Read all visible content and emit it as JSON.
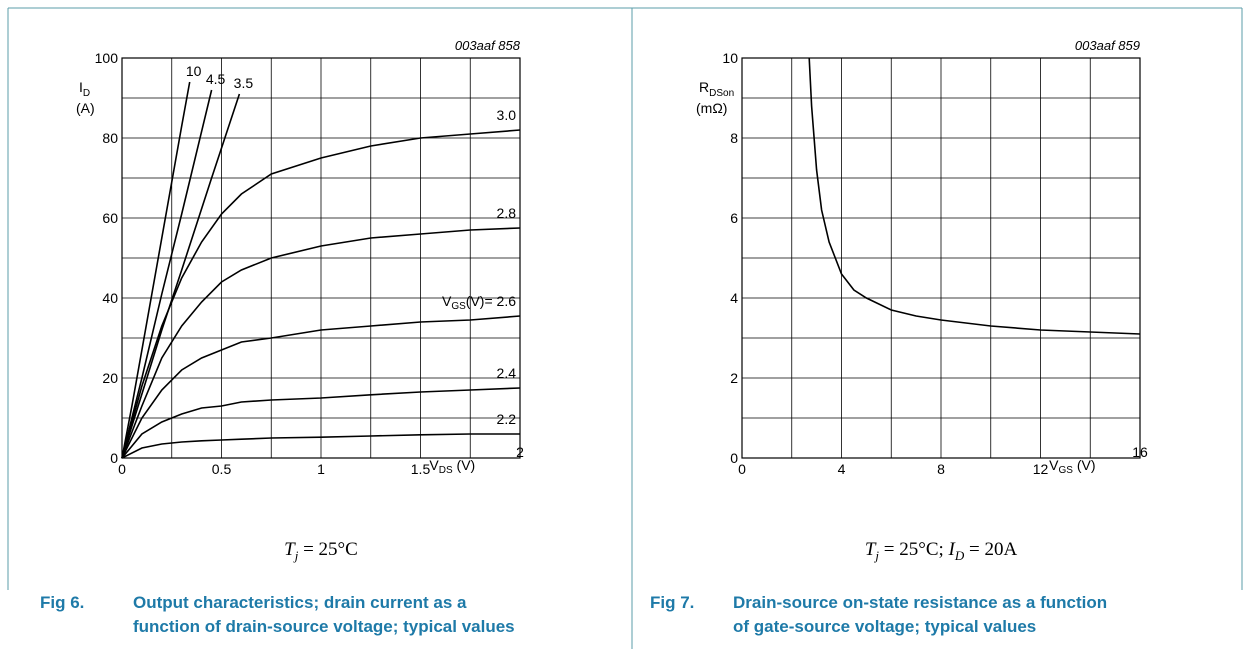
{
  "chart_data": [
    {
      "type": "line",
      "code": "003aaf 858",
      "ylabel": [
        "I",
        "D"
      ],
      "ylabel_unit": "(A)",
      "xlabel": [
        "V",
        "DS",
        " (V)"
      ],
      "legend_prefix": [
        "V",
        "GS",
        "(V)= "
      ],
      "xlim": [
        0,
        2
      ],
      "xticks": [
        0,
        0.5,
        1,
        1.5,
        2
      ],
      "ylim": [
        0,
        100
      ],
      "yticks": [
        0,
        20,
        40,
        60,
        80,
        100
      ],
      "grid": true,
      "series": [
        {
          "name": "10",
          "color": "#000000",
          "x": [
            0,
            0.05,
            0.1,
            0.2,
            0.3,
            0.34
          ],
          "values": [
            0,
            13,
            27,
            55,
            83,
            94
          ]
        },
        {
          "name": "4.5",
          "color": "#000000",
          "x": [
            0,
            0.05,
            0.1,
            0.2,
            0.3,
            0.45
          ],
          "values": [
            0,
            10,
            20,
            41,
            61,
            92
          ]
        },
        {
          "name": "3.5",
          "color": "#000000",
          "x": [
            0,
            0.05,
            0.1,
            0.2,
            0.3,
            0.45,
            0.59
          ],
          "values": [
            0,
            8,
            16,
            32,
            47,
            70,
            91
          ]
        },
        {
          "name": "3.0",
          "color": "#000000",
          "x": [
            0,
            0.1,
            0.2,
            0.3,
            0.4,
            0.5,
            0.6,
            0.75,
            1,
            1.25,
            1.5,
            1.75,
            2
          ],
          "values": [
            0,
            18,
            33,
            45,
            54,
            61,
            66,
            71,
            75,
            78,
            80,
            81,
            82
          ]
        },
        {
          "name": "2.8",
          "color": "#000000",
          "x": [
            0,
            0.1,
            0.2,
            0.3,
            0.4,
            0.5,
            0.6,
            0.75,
            1,
            1.25,
            1.5,
            1.75,
            2
          ],
          "values": [
            0,
            13,
            25,
            33,
            39,
            44,
            47,
            50,
            53,
            55,
            56,
            57,
            57.5
          ]
        },
        {
          "name": "2.6",
          "color": "#000000",
          "x": [
            0,
            0.1,
            0.2,
            0.3,
            0.4,
            0.5,
            0.6,
            0.75,
            1,
            1.25,
            1.5,
            1.75,
            2
          ],
          "values": [
            0,
            10,
            17,
            22,
            25,
            27,
            29,
            30,
            32,
            33,
            34,
            34.5,
            35.5
          ]
        },
        {
          "name": "2.4",
          "color": "#000000",
          "x": [
            0,
            0.1,
            0.2,
            0.3,
            0.4,
            0.5,
            0.6,
            0.75,
            1,
            1.25,
            1.5,
            1.75,
            2
          ],
          "values": [
            0,
            6,
            9,
            11,
            12.5,
            13,
            14,
            14.5,
            15,
            15.8,
            16.5,
            17,
            17.5
          ]
        },
        {
          "name": "2.2",
          "color": "#000000",
          "x": [
            0,
            0.1,
            0.2,
            0.3,
            0.4,
            0.5,
            0.6,
            0.75,
            1,
            1.25,
            1.5,
            1.75,
            2
          ],
          "values": [
            0,
            2.5,
            3.5,
            4,
            4.3,
            4.5,
            4.7,
            5,
            5.2,
            5.5,
            5.8,
            6,
            6
          ]
        }
      ],
      "condition": [
        [
          "T",
          "j",
          " = 25°C"
        ]
      ],
      "fig": "Fig 6.",
      "caption": [
        "Output characteristics; drain current as a",
        "function of drain-source voltage; typical values"
      ]
    },
    {
      "type": "line",
      "code": "003aaf 859",
      "ylabel": [
        "R",
        "DSon"
      ],
      "ylabel_unit": "(mΩ)",
      "xlabel": [
        "V",
        "GS",
        " (V)"
      ],
      "xlim": [
        0,
        16
      ],
      "xticks": [
        0,
        4,
        8,
        12,
        16
      ],
      "ylim": [
        0,
        10
      ],
      "yticks": [
        0,
        2,
        4,
        6,
        8,
        10
      ],
      "grid": true,
      "series": [
        {
          "color": "#000000",
          "x": [
            2.7,
            2.8,
            3,
            3.2,
            3.5,
            4,
            4.5,
            5,
            6,
            7,
            8,
            10,
            12,
            14,
            16
          ],
          "values": [
            10,
            8.8,
            7.2,
            6.2,
            5.4,
            4.6,
            4.2,
            4.0,
            3.7,
            3.55,
            3.45,
            3.3,
            3.2,
            3.15,
            3.1
          ]
        }
      ],
      "condition": [
        [
          "T",
          "j",
          " = 25°C; "
        ],
        [
          "I",
          "D",
          " = 20A"
        ]
      ],
      "fig": "Fig 7.",
      "caption": [
        "Drain-source on-state resistance as a function",
        "of gate-source voltage; typical values"
      ]
    }
  ]
}
